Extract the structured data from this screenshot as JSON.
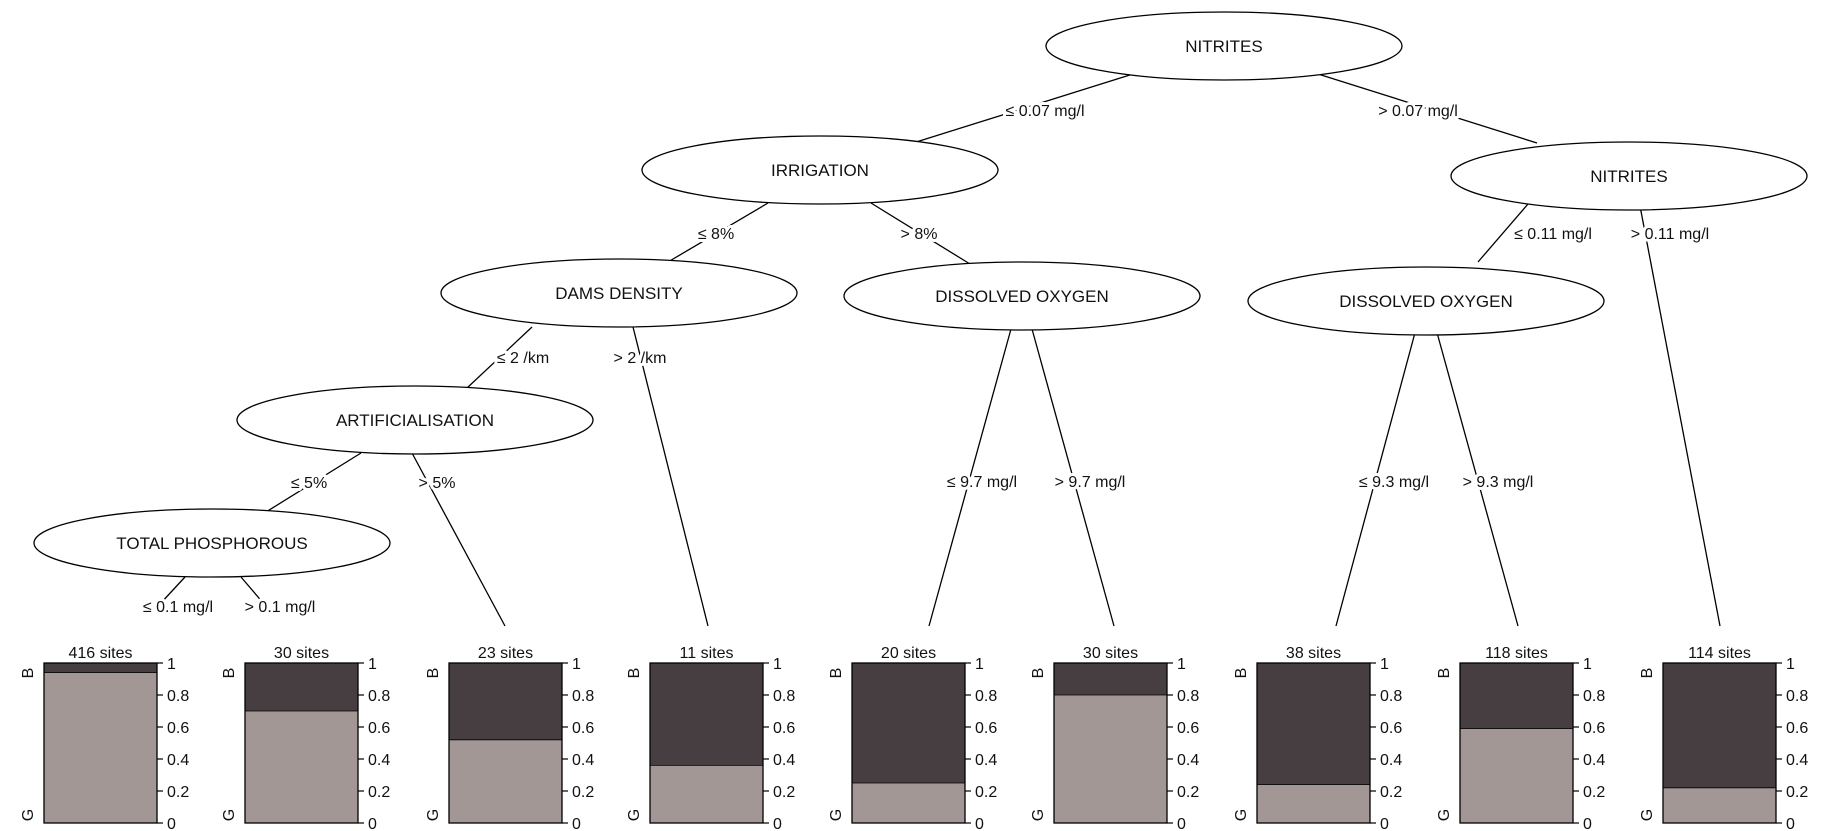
{
  "colors": {
    "bad": "#463e40",
    "good": "#a39795",
    "line": "#000000"
  },
  "nodes": [
    {
      "id": "n1",
      "label": "NITRITES"
    },
    {
      "id": "n2",
      "label": "IRRIGATION"
    },
    {
      "id": "n3",
      "label": "NITRITES"
    },
    {
      "id": "n4",
      "label": "DAMS DENSITY"
    },
    {
      "id": "n5",
      "label": "DISSOLVED OXYGEN"
    },
    {
      "id": "n6",
      "label": "DISSOLVED OXYGEN"
    },
    {
      "id": "n7",
      "label": "ARTIFICIALISATION"
    },
    {
      "id": "n8",
      "label": "TOTAL PHOSPHOROUS"
    }
  ],
  "edges": [
    {
      "from": "n1",
      "to": "n2",
      "label": "≤ 0.07 mg/l"
    },
    {
      "from": "n1",
      "to": "n3",
      "label": "> 0.07 mg/l"
    },
    {
      "from": "n2",
      "to": "n4",
      "label": "≤ 8%"
    },
    {
      "from": "n2",
      "to": "n5",
      "label": "> 8%"
    },
    {
      "from": "n3",
      "to": "n6",
      "label": "≤ 0.11 mg/l"
    },
    {
      "from": "n3",
      "to": "L9",
      "label": "> 0.11 mg/l"
    },
    {
      "from": "n4",
      "to": "n7",
      "label": "≤ 2 /km"
    },
    {
      "from": "n4",
      "to": "L4",
      "label": "> 2 /km"
    },
    {
      "from": "n5",
      "to": "L5",
      "label": "≤ 9.7 mg/l"
    },
    {
      "from": "n5",
      "to": "L6",
      "label": "> 9.7 mg/l"
    },
    {
      "from": "n6",
      "to": "L7",
      "label": "≤ 9.3 mg/l"
    },
    {
      "from": "n6",
      "to": "L8",
      "label": "> 9.3 mg/l"
    },
    {
      "from": "n7",
      "to": "n8",
      "label": "≤ 5%"
    },
    {
      "from": "n7",
      "to": "L3",
      "label": "> 5%"
    },
    {
      "from": "n8",
      "to": "L1",
      "label": "≤ 0.1 mg/l"
    },
    {
      "from": "n8",
      "to": "L2",
      "label": "> 0.1 mg/l"
    }
  ],
  "leaves": [
    {
      "id": "L1",
      "sites_label": "416 sites",
      "good_fraction": 0.94
    },
    {
      "id": "L2",
      "sites_label": "30 sites",
      "good_fraction": 0.7
    },
    {
      "id": "L3",
      "sites_label": "23 sites",
      "good_fraction": 0.52
    },
    {
      "id": "L4",
      "sites_label": "11 sites",
      "good_fraction": 0.36
    },
    {
      "id": "L5",
      "sites_label": "20 sites",
      "good_fraction": 0.25
    },
    {
      "id": "L6",
      "sites_label": "30 sites",
      "good_fraction": 0.8
    },
    {
      "id": "L7",
      "sites_label": "38 sites",
      "good_fraction": 0.24
    },
    {
      "id": "L8",
      "sites_label": "118 sites",
      "good_fraction": 0.59
    },
    {
      "id": "L9",
      "sites_label": "114 sites",
      "good_fraction": 0.22
    }
  ],
  "axis_ticks": [
    "0",
    "0.2",
    "0.4",
    "0.6",
    "0.8",
    "1"
  ],
  "bar_letters": {
    "top": "B",
    "bottom": "G"
  }
}
